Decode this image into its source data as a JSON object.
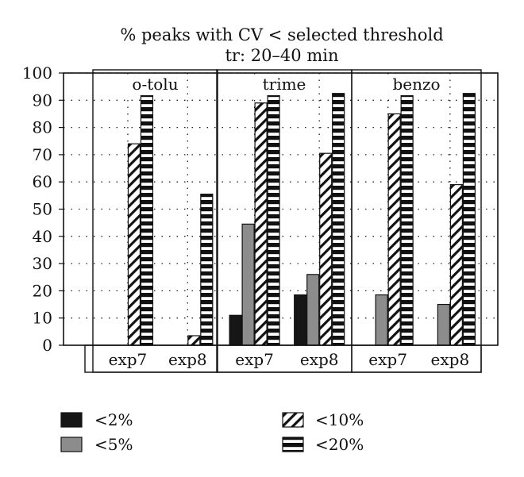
{
  "chart_data": {
    "type": "bar",
    "title": "% peaks with CV < selected threshold",
    "subtitle": "tr: 20–40 min",
    "ylim": [
      0,
      100
    ],
    "yticks": [
      0,
      10,
      20,
      30,
      40,
      50,
      60,
      70,
      80,
      90,
      100
    ],
    "grid": "dotted horizontal and vertical",
    "panels": [
      "o-tolu",
      "trime",
      "benzo"
    ],
    "experiments": [
      "exp7",
      "exp8"
    ],
    "series": [
      {
        "name": "<2%",
        "pattern": "solid-black",
        "values": [
          [
            0,
            0
          ],
          [
            11,
            18.5
          ],
          [
            0,
            0
          ]
        ]
      },
      {
        "name": "<5%",
        "pattern": "solid-gray",
        "values": [
          [
            0,
            0
          ],
          [
            44.5,
            26
          ],
          [
            18.5,
            15
          ]
        ]
      },
      {
        "name": "<10%",
        "pattern": "hatched",
        "values": [
          [
            74,
            3.5
          ],
          [
            89,
            70.5
          ],
          [
            85,
            59
          ]
        ]
      },
      {
        "name": "<20%",
        "pattern": "striped",
        "values": [
          [
            92.5,
            55.5
          ],
          [
            92.5,
            92.5
          ],
          [
            92.5,
            92.5
          ]
        ]
      }
    ],
    "legend": {
      "placement": "bottom",
      "items": [
        "<2%",
        "<10%",
        "<5%",
        "<20%"
      ]
    }
  },
  "colors": {
    "black": "#161616",
    "gray": "#8c8c8c",
    "axis": "#111111"
  }
}
